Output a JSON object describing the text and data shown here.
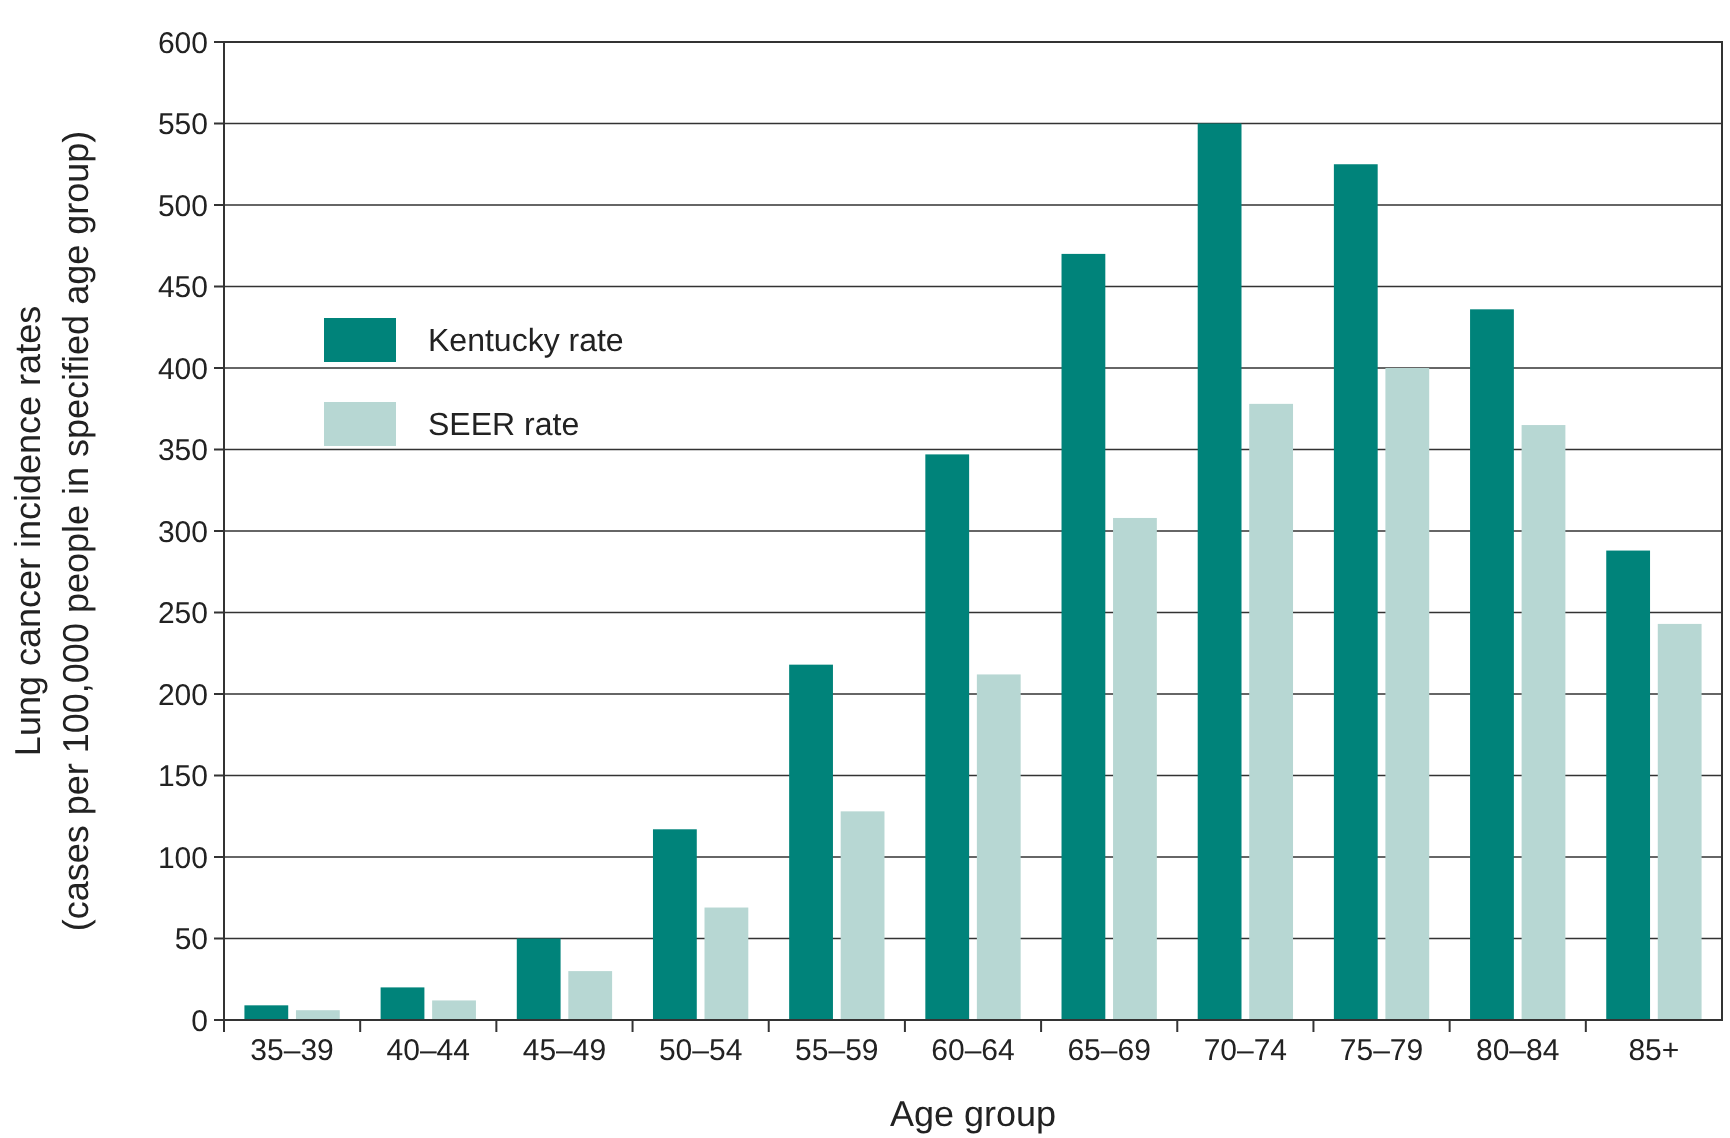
{
  "chart_data": {
    "type": "bar",
    "xlabel": "Age group",
    "ylabel": "Lung cancer incidence rates\n(cases per 100,000 people in specified age group)",
    "categories": [
      "35–39",
      "40–44",
      "45–49",
      "50–54",
      "55–59",
      "60–64",
      "65–69",
      "70–74",
      "75–79",
      "80–84",
      "85+"
    ],
    "series": [
      {
        "name": "Kentucky rate",
        "color": "#00837a",
        "values": [
          9,
          20,
          50,
          117,
          218,
          347,
          470,
          550,
          525,
          436,
          288
        ]
      },
      {
        "name": "SEER rate",
        "color": "#b7d7d3",
        "values": [
          6,
          12,
          30,
          69,
          128,
          212,
          308,
          378,
          400,
          365,
          243
        ]
      }
    ],
    "ylim": [
      0,
      600
    ],
    "yticks": [
      0,
      50,
      100,
      150,
      200,
      250,
      300,
      350,
      400,
      450,
      500,
      550,
      600
    ],
    "grid": "y",
    "legend": "top left"
  }
}
